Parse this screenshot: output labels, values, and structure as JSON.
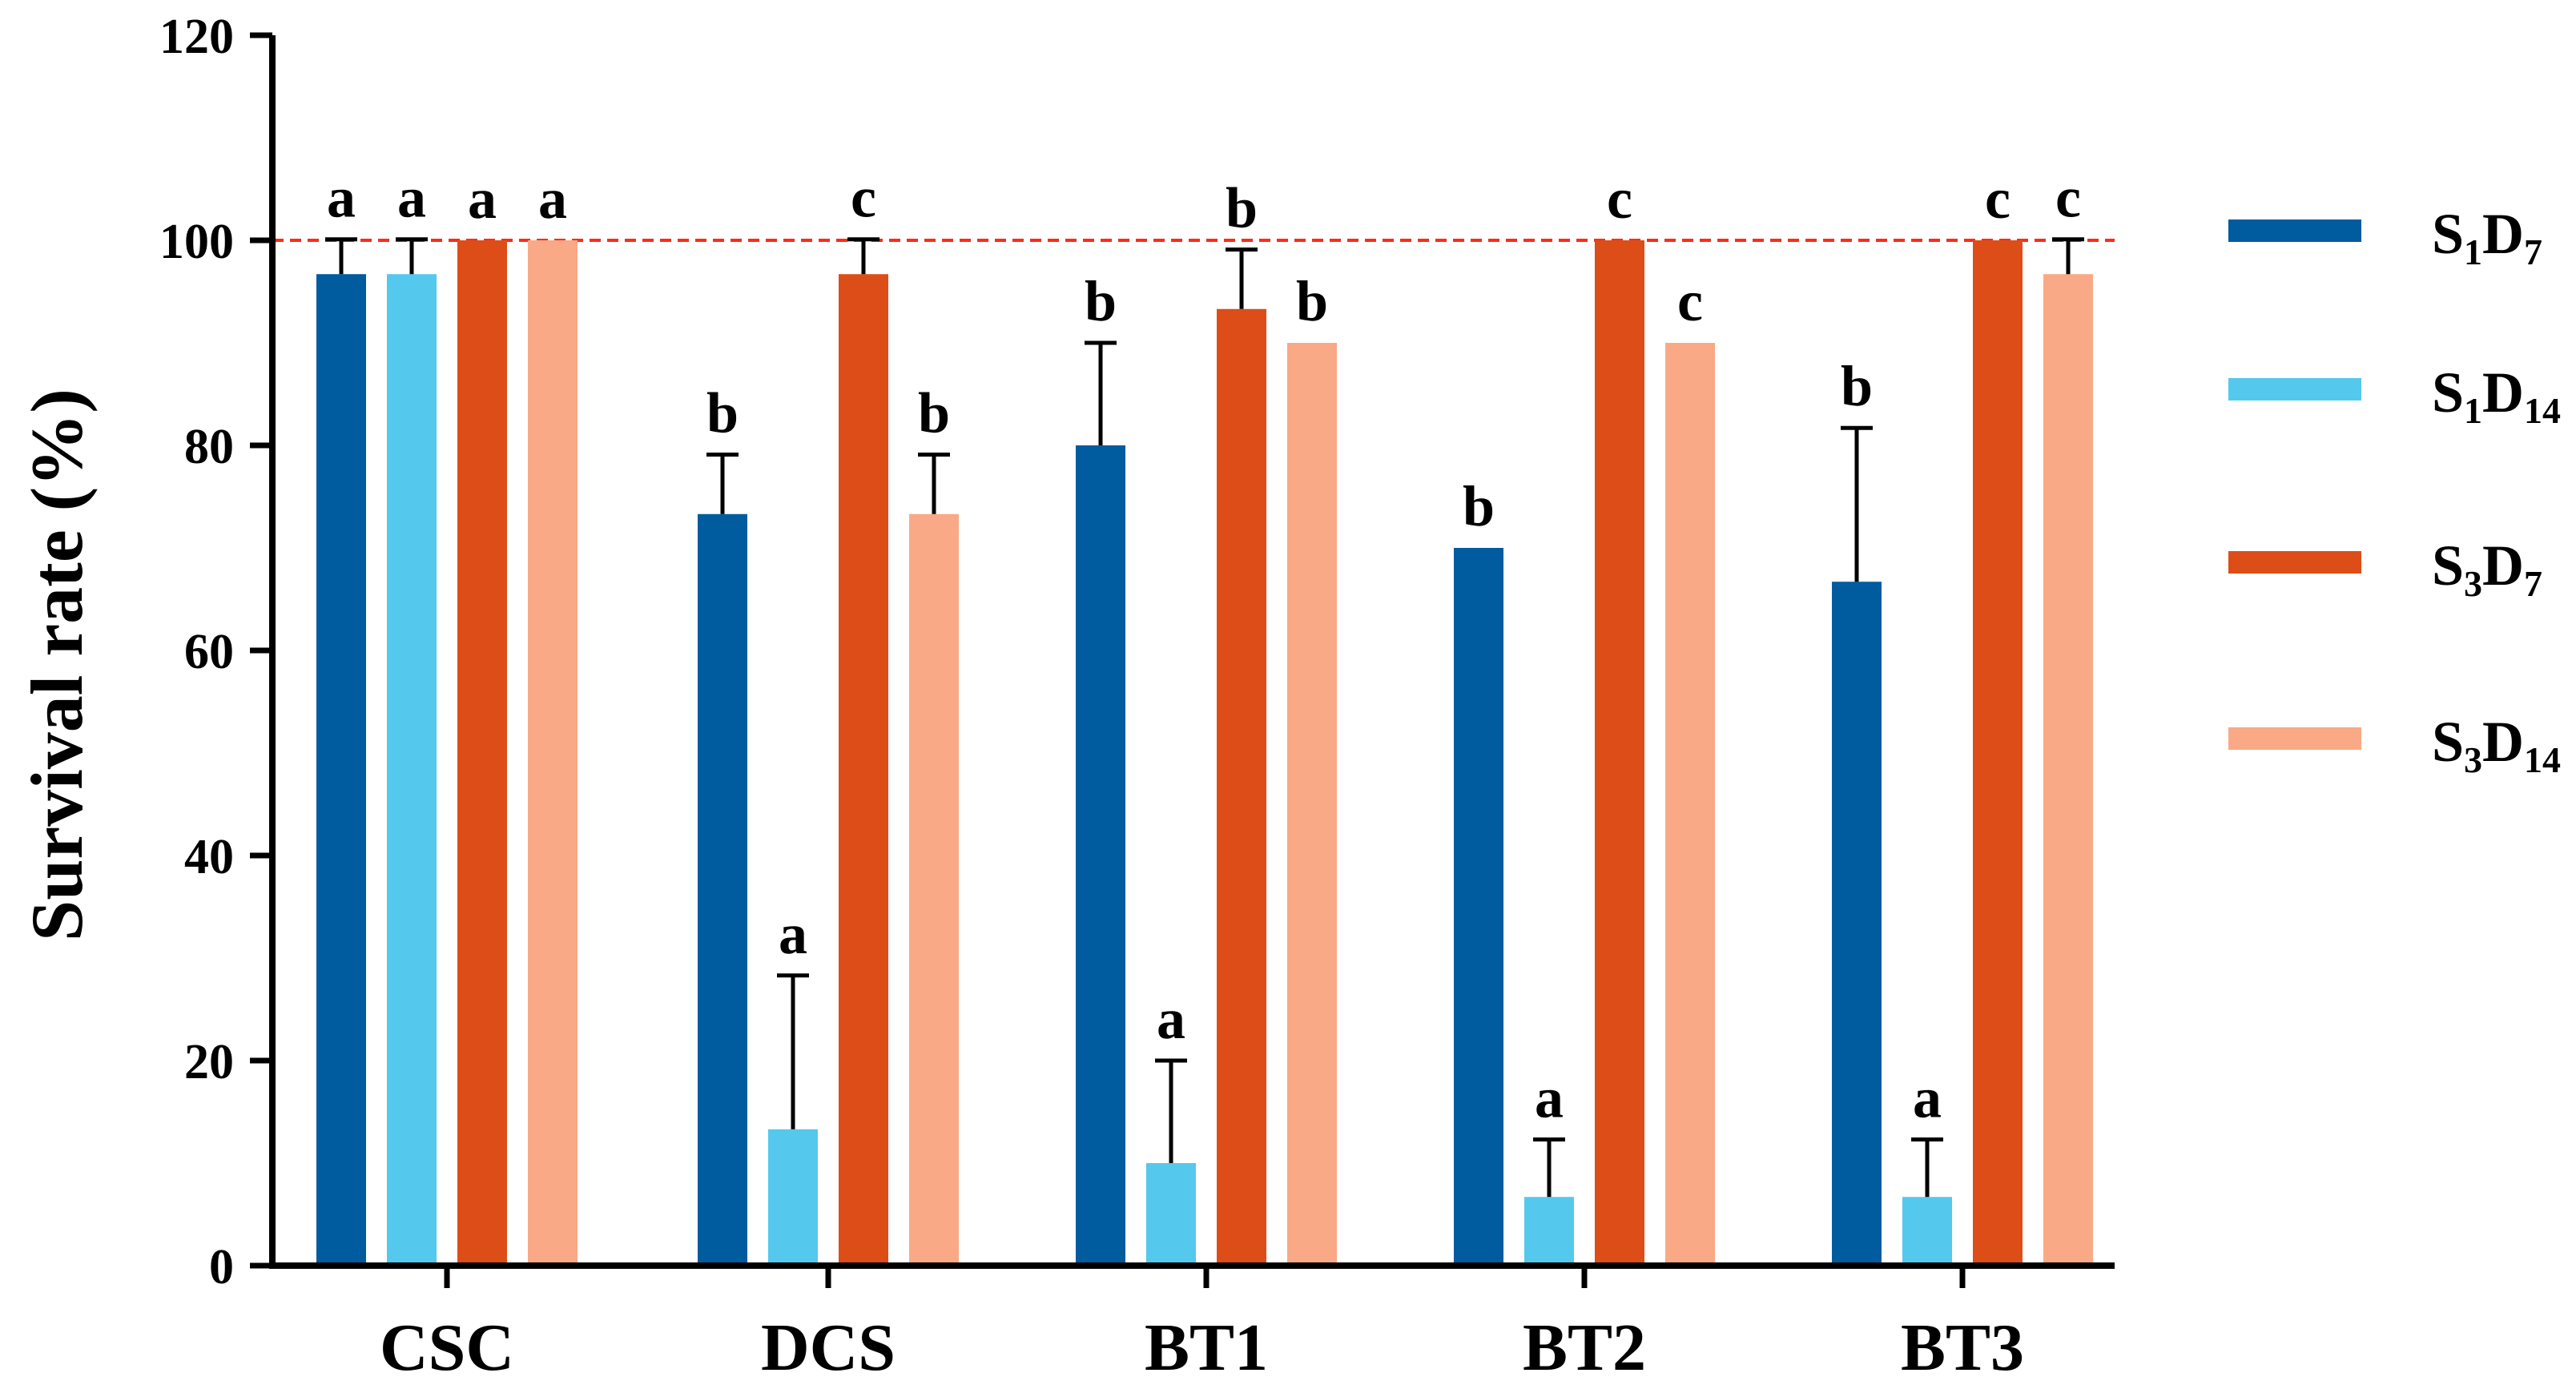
{
  "chart_data": {
    "type": "bar",
    "title": "",
    "xlabel": "",
    "ylabel": "Survival rate (%)",
    "ylim": [
      0,
      120
    ],
    "yticks": [
      "0",
      "20",
      "40",
      "60",
      "80",
      "100",
      "120"
    ],
    "grid": false,
    "legend_position": "right",
    "reference_line": {
      "y": 100,
      "color": "#ff2a1a",
      "style": "dashed"
    },
    "categories": [
      "CSC",
      "DCS",
      "BT1",
      "BT2",
      "BT3"
    ],
    "series": [
      {
        "name": "S1D7",
        "legend_label": {
          "main": "S",
          "sub1": "1",
          "mid": "D",
          "sub2": "7"
        },
        "color": "#005b9f",
        "values": [
          96.7,
          73.3,
          80.0,
          70.0,
          66.7
        ],
        "errors": [
          3.4,
          5.8,
          10.0,
          0,
          15.0
        ],
        "letters": [
          "a",
          "b",
          "b",
          "b",
          "b"
        ]
      },
      {
        "name": "S1D14",
        "legend_label": {
          "main": "S",
          "sub1": "1",
          "mid": "D",
          "sub2": "14"
        },
        "color": "#55c8ed",
        "values": [
          96.7,
          13.3,
          10.0,
          6.7,
          6.7
        ],
        "errors": [
          3.4,
          15.0,
          10.0,
          5.6,
          5.6
        ],
        "letters": [
          "a",
          "a",
          "a",
          "a",
          "a"
        ]
      },
      {
        "name": "S3D7",
        "legend_label": {
          "main": "S",
          "sub1": "3",
          "mid": "D",
          "sub2": "7"
        },
        "color": "#dd4d17",
        "values": [
          100.0,
          96.7,
          93.3,
          100.0,
          100.0
        ],
        "errors": [
          0,
          3.4,
          5.8,
          0,
          0
        ],
        "letters": [
          "a",
          "c",
          "b",
          "c",
          "c"
        ]
      },
      {
        "name": "S3D14",
        "legend_label": {
          "main": "S",
          "sub1": "3",
          "mid": "D",
          "sub2": "14"
        },
        "color": "#f9a985",
        "values": [
          100.0,
          73.3,
          90.0,
          90.0,
          96.7
        ],
        "errors": [
          0,
          5.8,
          0,
          0,
          3.4
        ],
        "letters": [
          "a",
          "b",
          "b",
          "c",
          "c"
        ]
      }
    ]
  }
}
